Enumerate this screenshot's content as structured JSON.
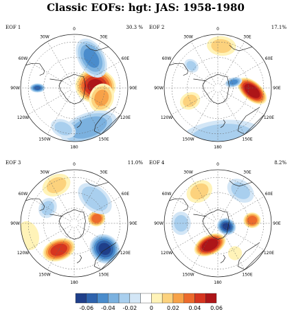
{
  "figure": {
    "title": "Classic EOFs: hgt: JAS: 1958-1980"
  },
  "panels": [
    {
      "name": "EOF 1",
      "variance": "30.3 %",
      "blobs": [
        {
          "value": 0.06,
          "r_deg": 28,
          "lon": 85,
          "size": 0.58,
          "aspect": 0.85,
          "rot": 10
        },
        {
          "value": 0.03,
          "r_deg": 38,
          "lon": 110,
          "size": 0.35,
          "aspect": 1.2,
          "rot": 0
        },
        {
          "value": -0.04,
          "r_deg": 45,
          "lon": 30,
          "size": 0.38,
          "aspect": 1.6,
          "rot": 30
        },
        {
          "value": -0.035,
          "r_deg": 55,
          "lon": 160,
          "size": 0.42,
          "aspect": 2.0,
          "rot": 0
        },
        {
          "value": -0.05,
          "r_deg": 48,
          "lon": 270,
          "size": 0.22,
          "aspect": 0.6,
          "rot": 0
        },
        {
          "value": -0.02,
          "r_deg": 55,
          "lon": 195,
          "size": 0.25,
          "aspect": 1.5,
          "rot": 10
        }
      ]
    },
    {
      "name": "EOF 2",
      "variance": "17.1%",
      "blobs": [
        {
          "value": 0.07,
          "r_deg": 45,
          "lon": 95,
          "size": 0.5,
          "aspect": 0.55,
          "rot": 35
        },
        {
          "value": 0.02,
          "r_deg": 55,
          "lon": 5,
          "size": 0.28,
          "aspect": 1.5,
          "rot": 0
        },
        {
          "value": 0.02,
          "r_deg": 40,
          "lon": 245,
          "size": 0.3,
          "aspect": 0.8,
          "rot": 0
        },
        {
          "value": -0.04,
          "r_deg": 22,
          "lon": 70,
          "size": 0.25,
          "aspect": 0.55,
          "rot": 5
        },
        {
          "value": -0.025,
          "r_deg": 65,
          "lon": 175,
          "size": 0.5,
          "aspect": 2.4,
          "rot": 0
        },
        {
          "value": -0.02,
          "r_deg": 45,
          "lon": 310,
          "size": 0.22,
          "aspect": 0.8,
          "rot": 0
        }
      ]
    },
    {
      "name": "EOF 3",
      "variance": "11.0%",
      "blobs": [
        {
          "value": -0.06,
          "r_deg": 52,
          "lon": 130,
          "size": 0.45,
          "aspect": 0.9,
          "rot": 0
        },
        {
          "value": 0.055,
          "r_deg": 40,
          "lon": 210,
          "size": 0.48,
          "aspect": 0.65,
          "rot": 40
        },
        {
          "value": 0.045,
          "r_deg": 30,
          "lon": 78,
          "size": 0.25,
          "aspect": 0.9,
          "rot": 0
        },
        {
          "value": -0.025,
          "r_deg": 42,
          "lon": 40,
          "size": 0.35,
          "aspect": 1.6,
          "rot": 0
        },
        {
          "value": 0.02,
          "r_deg": 55,
          "lon": 335,
          "size": 0.3,
          "aspect": 1.4,
          "rot": 0
        },
        {
          "value": -0.02,
          "r_deg": 40,
          "lon": 300,
          "size": 0.25,
          "aspect": 1.2,
          "rot": 0
        },
        {
          "value": 0.015,
          "r_deg": 62,
          "lon": 255,
          "size": 0.3,
          "aspect": 1.4,
          "rot": 0
        }
      ]
    },
    {
      "name": "EOF 4",
      "variance": "8.2%",
      "blobs": [
        {
          "value": 0.07,
          "r_deg": 30,
          "lon": 200,
          "size": 0.48,
          "aspect": 0.6,
          "rot": 45
        },
        {
          "value": -0.06,
          "r_deg": 12,
          "lon": 110,
          "size": 0.28,
          "aspect": 0.85,
          "rot": 0
        },
        {
          "value": 0.045,
          "r_deg": 45,
          "lon": 85,
          "size": 0.25,
          "aspect": 0.9,
          "rot": 0
        },
        {
          "value": -0.02,
          "r_deg": 52,
          "lon": 35,
          "size": 0.3,
          "aspect": 1.4,
          "rot": 0
        },
        {
          "value": 0.02,
          "r_deg": 48,
          "lon": 330,
          "size": 0.3,
          "aspect": 1.3,
          "rot": 0
        },
        {
          "value": -0.02,
          "r_deg": 48,
          "lon": 270,
          "size": 0.28,
          "aspect": 1.2,
          "rot": 0
        },
        {
          "value": 0.015,
          "r_deg": 45,
          "lon": 150,
          "size": 0.2,
          "aspect": 1.0,
          "rot": 0
        }
      ]
    }
  ],
  "map": {
    "lon_labels": [
      "0",
      "30E",
      "60E",
      "90E",
      "120E",
      "150E",
      "180",
      "150W",
      "120W",
      "90W",
      "60W",
      "30W"
    ],
    "lon_ticks": [
      0,
      30,
      60,
      90,
      120,
      150,
      180,
      210,
      240,
      270,
      300,
      330
    ],
    "lat_circles_deg": [
      20,
      40,
      60
    ]
  },
  "colorbar": {
    "levels": [
      -0.06,
      -0.05,
      -0.04,
      -0.03,
      -0.02,
      -0.01,
      0.01,
      0.02,
      0.03,
      0.04,
      0.05,
      0.06
    ],
    "labels": [
      "-0.06",
      "-0.04",
      "-0.02",
      "0",
      "0.02",
      "0.04",
      "0.06"
    ],
    "colors": [
      "#1f3f8a",
      "#2e63ad",
      "#4a8ccc",
      "#7bb1df",
      "#a9cfee",
      "#d3e6f6",
      "#ffffff",
      "#fff3b8",
      "#fcd27d",
      "#f7a248",
      "#ec6a2c",
      "#d6351f",
      "#ad1518"
    ]
  }
}
